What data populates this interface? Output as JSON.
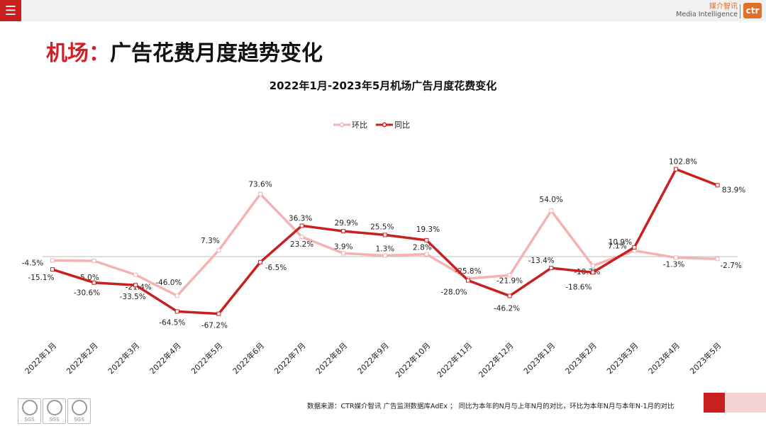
{
  "header": {
    "menu_icon": "hamburger-icon",
    "brand_cn": "媒介智讯",
    "brand_en": "Media Intelligence",
    "logo_text": "ctr"
  },
  "title": {
    "prefix": "机场：",
    "main": "广告花费月度趋势变化"
  },
  "colors": {
    "accent_red": "#c8201f",
    "title_red": "#d0202a",
    "mom_line": "#f4b3b3",
    "yoy_line": "#c8201f",
    "brand_orange": "#e0702a"
  },
  "chart_data": {
    "type": "line",
    "title": "2022年1月-2023年5月机场广告月度花费变化",
    "categories": [
      "2022年1月",
      "2022年2月",
      "2022年3月",
      "2022年4月",
      "2022年5月",
      "2022年6月",
      "2022年7月",
      "2022年8月",
      "2022年9月",
      "2022年10月",
      "2022年11月",
      "2022年12月",
      "2023年1月",
      "2023年2月",
      "2023年3月",
      "2023年4月",
      "2023年5月"
    ],
    "series": [
      {
        "name": "环比",
        "values": [
          -4.5,
          -5.0,
          -21.4,
          -46.0,
          7.3,
          73.6,
          23.2,
          3.9,
          1.3,
          2.8,
          -25.8,
          -21.9,
          54.0,
          -10.7,
          7.1,
          -1.3,
          -2.7
        ]
      },
      {
        "name": "同比",
        "values": [
          -15.1,
          -30.6,
          -33.5,
          -64.5,
          -67.2,
          -6.5,
          36.3,
          29.9,
          25.5,
          19.3,
          -28.0,
          -46.2,
          -13.4,
          -18.6,
          10.9,
          102.8,
          83.9
        ]
      }
    ],
    "legend": "top-center",
    "ylim": [
      -80,
      110
    ],
    "grid": false,
    "zero_line": true
  },
  "footer": {
    "source": "数据来源：CTR媒介智讯 广告监测数据库AdEx ； 同比为本年的N月与上年N月的对比，环比为本年N月与本年N-1月的对比",
    "cert_label": "SGS"
  }
}
